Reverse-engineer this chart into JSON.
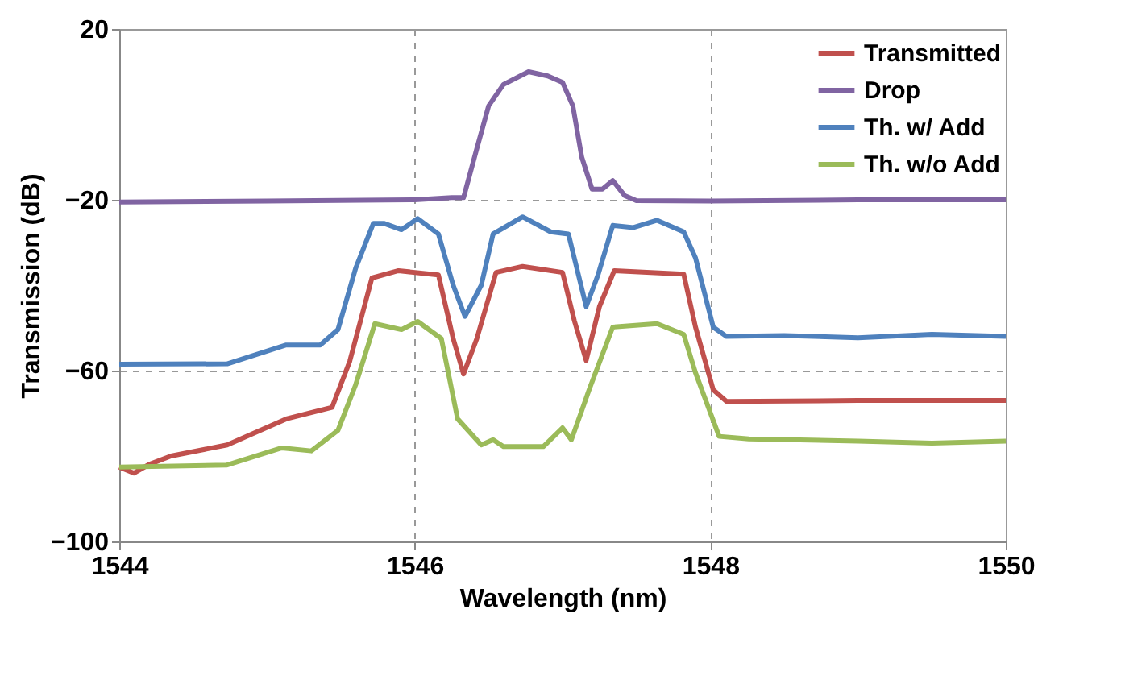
{
  "chart_data": {
    "type": "line",
    "xlabel": "Wavelength (nm)",
    "ylabel": "Transmission (dB)",
    "xlim": [
      1544,
      1550
    ],
    "xticks": [
      1544,
      1546,
      1548,
      1550
    ],
    "ylim": [
      -100,
      20
    ],
    "yticks": [
      -100,
      -60,
      -20,
      20
    ],
    "grid": true,
    "legend": "top right",
    "line_style": "solid",
    "marker": "none",
    "series": [
      {
        "name": "Transmitted",
        "color": "#c0504d",
        "x": [
          1544,
          1544.1,
          1544.2,
          1544.35,
          1544.73,
          1545.13,
          1545.44,
          1545.56,
          1545.71,
          1545.89,
          1546.16,
          1546.26,
          1546.33,
          1546.42,
          1546.55,
          1546.73,
          1547.0,
          1547.08,
          1547.16,
          1547.25,
          1547.35,
          1547.82,
          1547.9,
          1548.02,
          1548.11,
          1549,
          1550
        ],
        "values": [
          -82.6,
          -84,
          -82,
          -80,
          -77.4,
          -71.3,
          -68.6,
          -57.8,
          -38.3,
          -36.6,
          -37.6,
          -52.5,
          -60.8,
          -52.5,
          -37,
          -35.6,
          -37,
          -48.3,
          -57.6,
          -45,
          -36.6,
          -37.4,
          -49.8,
          -64.5,
          -67.2,
          -67,
          -67
        ]
      },
      {
        "name": "Drop",
        "color": "#8064a2",
        "x": [
          1544,
          1545,
          1546,
          1546.25,
          1546.33,
          1546.42,
          1546.5,
          1546.6,
          1546.77,
          1546.9,
          1547.0,
          1547.07,
          1547.13,
          1547.2,
          1547.27,
          1547.34,
          1547.42,
          1547.5,
          1548,
          1549,
          1550
        ],
        "values": [
          -20.5,
          -20.3,
          -20,
          -19.5,
          -19.5,
          -8,
          2,
          7,
          10,
          9,
          7.5,
          2,
          -10,
          -17.5,
          -17.5,
          -15.5,
          -19,
          -20.2,
          -20.3,
          -20,
          -20
        ]
      },
      {
        "name": "Th. w/ Add",
        "color": "#4f81bd",
        "x": [
          1544,
          1544.73,
          1545.13,
          1545.36,
          1545.48,
          1545.6,
          1545.72,
          1545.79,
          1545.91,
          1546.02,
          1546.16,
          1546.26,
          1546.34,
          1546.45,
          1546.53,
          1546.73,
          1546.92,
          1547.04,
          1547.16,
          1547.24,
          1547.34,
          1547.48,
          1547.64,
          1547.82,
          1547.9,
          1548.02,
          1548.11,
          1548.5,
          1549,
          1549.5,
          1550
        ],
        "values": [
          -58.5,
          -58.4,
          -54,
          -54,
          -50.4,
          -36,
          -25.5,
          -25.5,
          -27,
          -24.4,
          -28,
          -40,
          -47.3,
          -40,
          -28,
          -24,
          -27.5,
          -28,
          -45,
          -37.6,
          -26,
          -26.5,
          -24.8,
          -27.5,
          -33.6,
          -49.8,
          -52,
          -51.8,
          -52.3,
          -51.5,
          -52
        ]
      },
      {
        "name": "Th. w/o Add",
        "color": "#9bbb59",
        "x": [
          1544,
          1544.73,
          1545.1,
          1545.3,
          1545.48,
          1545.6,
          1545.73,
          1545.91,
          1546.02,
          1546.18,
          1546.29,
          1546.45,
          1546.53,
          1546.6,
          1546.87,
          1547.0,
          1547.06,
          1547.18,
          1547.34,
          1547.64,
          1547.82,
          1547.9,
          1548.06,
          1548.26,
          1549,
          1549.5,
          1550
        ],
        "values": [
          -82.6,
          -82.1,
          -78.1,
          -78.8,
          -74,
          -63.3,
          -49,
          -50.4,
          -48.5,
          -52.5,
          -71.3,
          -77.4,
          -76.2,
          -77.8,
          -77.8,
          -73.4,
          -76.2,
          -64.5,
          -49.8,
          -49,
          -51.5,
          -60.5,
          -75.4,
          -76,
          -76.5,
          -77,
          -76.5
        ]
      }
    ]
  }
}
